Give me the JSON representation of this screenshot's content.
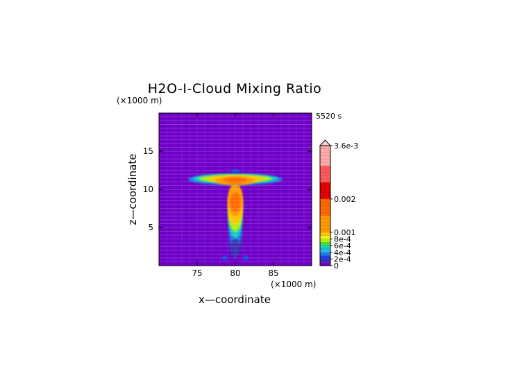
{
  "chart_data": {
    "type": "heatmap",
    "title": "H2O-I-Cloud Mixing Ratio",
    "time_label": "5520 s",
    "xlabel": "x—coordinate",
    "ylabel": "z—coordinate",
    "x_unit": "(×1000 m)",
    "z_unit": "(×1000 m)",
    "xlim": [
      70,
      90
    ],
    "ylim": [
      0,
      20
    ],
    "x_ticks": [
      75,
      80,
      85
    ],
    "y_ticks": [
      5,
      10,
      15
    ],
    "colorbar": {
      "range": [
        0,
        0.0036
      ],
      "labels": [
        "3.6e-3",
        "0.002",
        "0.001",
        "8e-4",
        "6e-4",
        "4e-4",
        "2e-4",
        "0"
      ],
      "label_values": [
        0.0036,
        0.002,
        0.001,
        0.0008,
        0.0006,
        0.0004,
        0.0002,
        0
      ],
      "levels": [
        {
          "value": 0.0,
          "color": "#6e00c8"
        },
        {
          "value": 0.0001,
          "color": "#3b2fb0"
        },
        {
          "value": 0.0002,
          "color": "#1e40e0"
        },
        {
          "value": 0.0003,
          "color": "#1f7be6"
        },
        {
          "value": 0.0004,
          "color": "#2cb6e6"
        },
        {
          "value": 0.0005,
          "color": "#18ccc0"
        },
        {
          "value": 0.0006,
          "color": "#3cdc3c"
        },
        {
          "value": 0.0007,
          "color": "#b4ee14"
        },
        {
          "value": 0.0008,
          "color": "#f6f014"
        },
        {
          "value": 0.0009,
          "color": "#ffc400"
        },
        {
          "value": 0.001,
          "color": "#ff9a00"
        },
        {
          "value": 0.0015,
          "color": "#ff6a00"
        },
        {
          "value": 0.002,
          "color": "#e40000"
        },
        {
          "value": 0.0025,
          "color": "#ff5a5a"
        },
        {
          "value": 0.003,
          "color": "#ffaaaa"
        }
      ],
      "extend": "max"
    },
    "field": {
      "background": 0,
      "features": [
        {
          "name": "anvil",
          "x": 80,
          "z": 11.4,
          "value": 0.0009
        },
        {
          "name": "anvil-core",
          "x": 80,
          "z": 11.2,
          "value": 0.0012
        },
        {
          "name": "upper-column",
          "x": 80,
          "z": 9.5,
          "value": 0.0011
        },
        {
          "name": "column-core",
          "x": 80,
          "z": 7.8,
          "value": 0.0015
        },
        {
          "name": "lower-column",
          "x": 80,
          "z": 4.5,
          "value": 0.0006
        },
        {
          "name": "base",
          "x": 80,
          "z": 2.5,
          "value": 0.0002
        },
        {
          "name": "left-blob",
          "x": 78.6,
          "z": 1.0,
          "value": 0.0002
        },
        {
          "name": "right-blob",
          "x": 81.4,
          "z": 1.0,
          "value": 0.0002
        }
      ]
    }
  }
}
